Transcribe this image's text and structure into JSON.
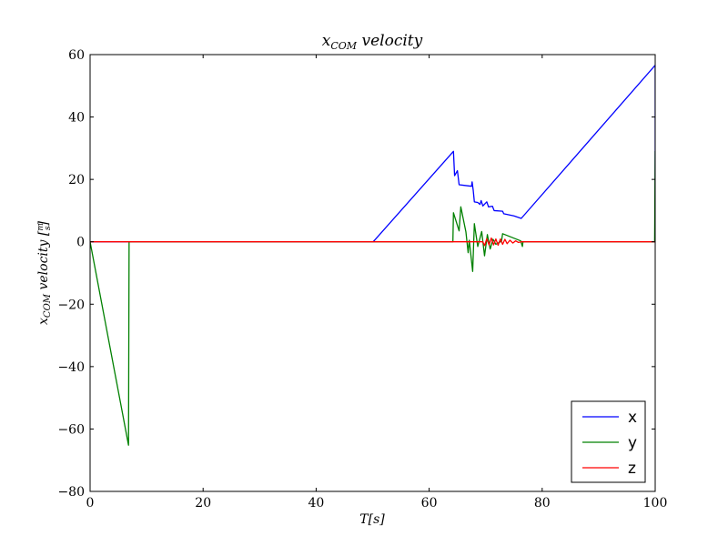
{
  "chart_data": {
    "type": "line",
    "title": "x_COM velocity",
    "title_main": "x",
    "title_sub": "COM",
    "title_rest": " velocity",
    "xlabel": "T[s]",
    "ylabel": "x_COM velocity [m/s]",
    "ylabel_main": "x",
    "ylabel_sub": "COM",
    "ylabel_rest": " velocity [",
    "ylabel_num": "m",
    "ylabel_den": "s",
    "ylabel_close": "]",
    "xlim": [
      0,
      100
    ],
    "ylim": [
      -80,
      60
    ],
    "xticks": [
      0,
      20,
      40,
      60,
      80,
      100
    ],
    "yticks": [
      -80,
      -60,
      -40,
      -20,
      0,
      20,
      40,
      60
    ],
    "xtick_labels": [
      "0",
      "20",
      "40",
      "60",
      "80",
      "100"
    ],
    "ytick_labels": [
      "−80",
      "−60",
      "−40",
      "−20",
      "0",
      "20",
      "40",
      "60"
    ],
    "grid": false,
    "legend_position": "bottom-right",
    "series": [
      {
        "name": "x",
        "color": "#0000ff",
        "points": [
          [
            0,
            0
          ],
          [
            50.1,
            0
          ],
          [
            64.3,
            29
          ],
          [
            64.5,
            21.2
          ],
          [
            65.0,
            22.8
          ],
          [
            65.3,
            18.3
          ],
          [
            67.5,
            17.8
          ],
          [
            67.6,
            19.2
          ],
          [
            67.8,
            16.5
          ],
          [
            68.0,
            12.8
          ],
          [
            68.6,
            12.6
          ],
          [
            69.0,
            12
          ],
          [
            69.2,
            13.2
          ],
          [
            69.5,
            11.5
          ],
          [
            70.2,
            12.8
          ],
          [
            70.5,
            11.2
          ],
          [
            71.2,
            11.4
          ],
          [
            71.5,
            10
          ],
          [
            73.0,
            9.8
          ],
          [
            73.2,
            9
          ],
          [
            75.0,
            8.3
          ],
          [
            76.3,
            7.5
          ],
          [
            100,
            56.6
          ],
          [
            100,
            0
          ]
        ]
      },
      {
        "name": "y",
        "color": "#008000",
        "points": [
          [
            0,
            0
          ],
          [
            6.8,
            -65.2
          ],
          [
            6.9,
            0
          ],
          [
            64.2,
            0
          ],
          [
            64.3,
            9.3
          ],
          [
            65.3,
            3.5
          ],
          [
            65.6,
            11.2
          ],
          [
            66.5,
            3.2
          ],
          [
            66.9,
            -3.5
          ],
          [
            67.1,
            0.5
          ],
          [
            67.7,
            -9.5
          ],
          [
            68.0,
            5.8
          ],
          [
            68.6,
            -1.5
          ],
          [
            69.3,
            3.3
          ],
          [
            69.8,
            -4.5
          ],
          [
            70.3,
            2.3
          ],
          [
            70.8,
            -2.3
          ],
          [
            71.3,
            0.8
          ],
          [
            71.8,
            -0.8
          ],
          [
            72.8,
            0.2
          ],
          [
            73.0,
            2.6
          ],
          [
            76.2,
            0.3
          ],
          [
            76.5,
            -1.5
          ],
          [
            76.6,
            0
          ],
          [
            99.9,
            0
          ],
          [
            100,
            29
          ],
          [
            100,
            0
          ]
        ]
      },
      {
        "name": "z",
        "color": "#ff0000",
        "points": [
          [
            0,
            0
          ],
          [
            69.5,
            0
          ],
          [
            69.8,
            -1.2
          ],
          [
            70.2,
            1.0
          ],
          [
            70.6,
            -1.0
          ],
          [
            71.0,
            1.2
          ],
          [
            71.4,
            -1.0
          ],
          [
            71.8,
            0.9
          ],
          [
            72.2,
            -1.1
          ],
          [
            72.6,
            0.9
          ],
          [
            73.0,
            -0.8
          ],
          [
            73.4,
            0.8
          ],
          [
            73.8,
            -0.6
          ],
          [
            74.3,
            0.5
          ],
          [
            74.8,
            -0.4
          ],
          [
            75.3,
            0.3
          ],
          [
            75.8,
            -0.2
          ],
          [
            76.3,
            0
          ],
          [
            100,
            0
          ]
        ]
      }
    ]
  }
}
